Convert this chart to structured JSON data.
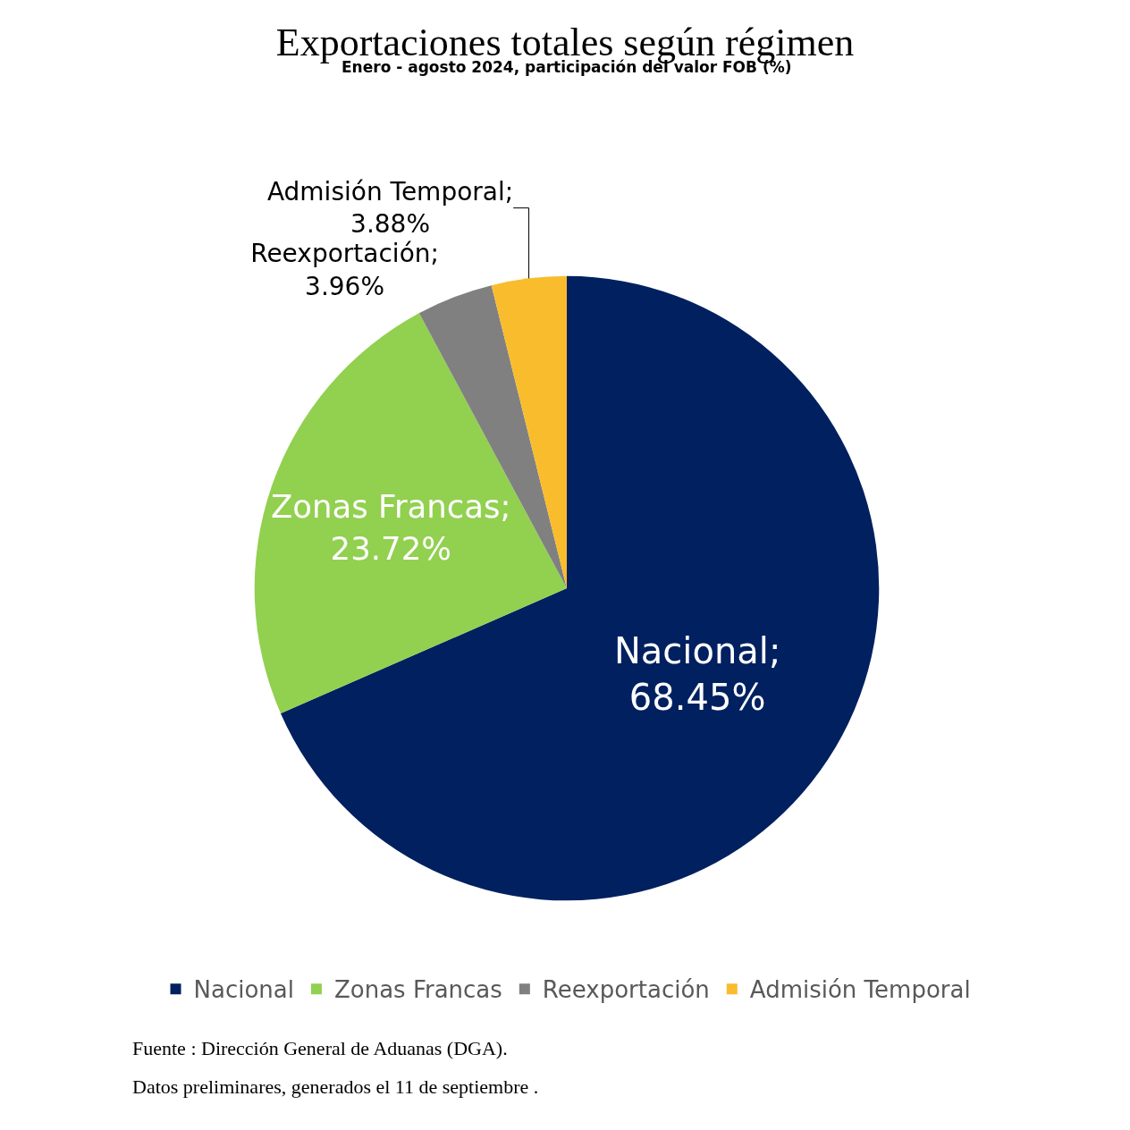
{
  "chart_data": {
    "type": "pie",
    "title": "Exportaciones totales según régimen",
    "subtitle": "Enero - agosto 2024, participación del valor FOB (%)",
    "categories": [
      "Nacional",
      "Zonas Francas",
      "Reexportación",
      "Admisión Temporal"
    ],
    "values": [
      68.45,
      23.72,
      3.96,
      3.88
    ],
    "colors": [
      "#002060",
      "#92d050",
      "#808080",
      "#f9bc2d"
    ],
    "value_labels": [
      "Nacional; 68.45%",
      "Zonas Francas; 23.72%",
      "Reexportación; 3.96%",
      "Admisión Temporal; 3.88%"
    ],
    "legend": "bottom",
    "annotations": [
      "Fuente : Dirección General de Aduanas (DGA).",
      "Datos preliminares, generados el 11 de septiembre ."
    ]
  }
}
